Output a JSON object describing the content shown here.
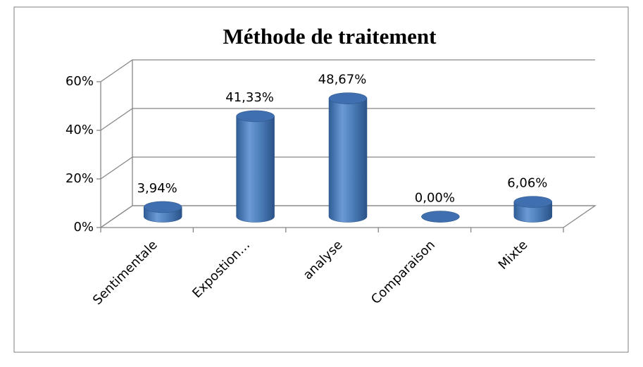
{
  "chart_data": {
    "type": "bar3d",
    "title": "Méthode de traitement",
    "categories": [
      "Sentimentale",
      "Expostion…",
      "analyse",
      "Comparaison",
      "Mixte"
    ],
    "values": [
      3.94,
      41.33,
      48.67,
      0,
      6.06
    ],
    "value_labels": [
      "3,94%",
      "41,33%",
      "48,67%",
      "0,00%",
      "6,06%"
    ],
    "color": "#4f81bd",
    "ylim": [
      0,
      60
    ],
    "yticks": [
      {
        "value": 0,
        "label": "0%"
      },
      {
        "value": 20,
        "label": "20%"
      },
      {
        "value": 40,
        "label": "40%"
      },
      {
        "value": 60,
        "label": "60%"
      }
    ],
    "grid": true
  }
}
